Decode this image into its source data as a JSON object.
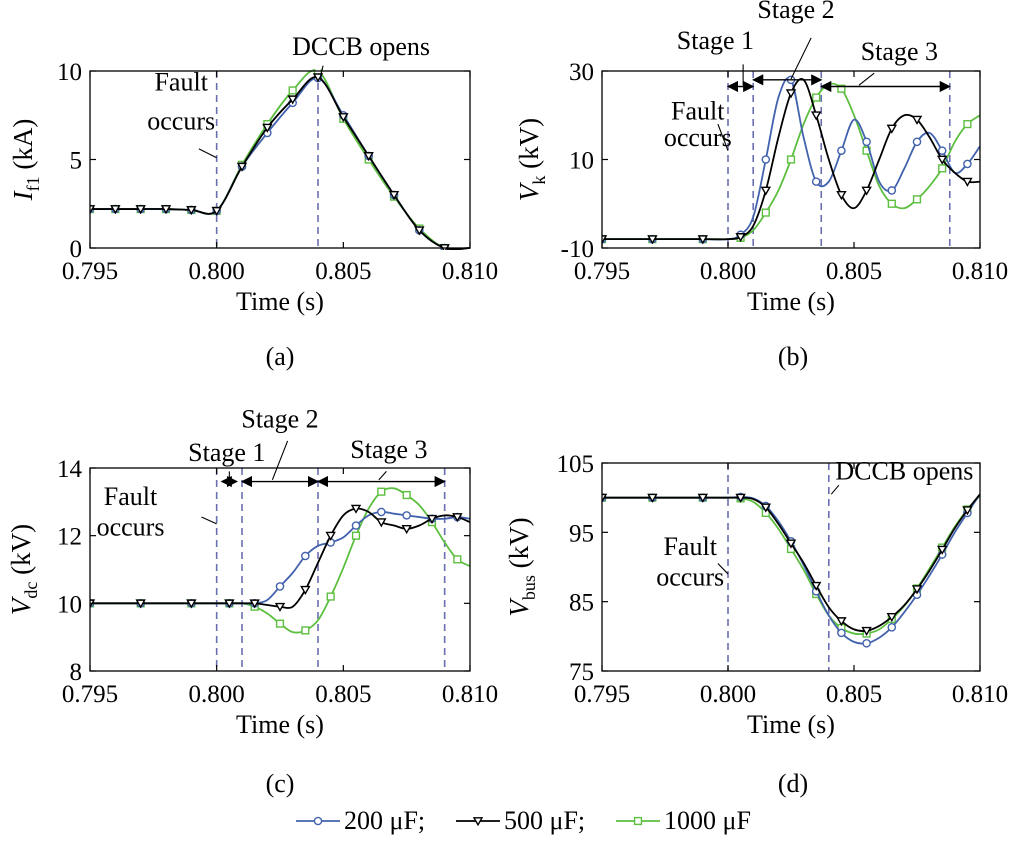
{
  "colors": {
    "200": "#4262ae",
    "500": "#000000",
    "1000": "#5cbf3f",
    "vline": "#6a6fb0"
  },
  "legend": [
    {
      "name": "200 μF;",
      "color": "#4262ae",
      "marker": "circle"
    },
    {
      "name": "500 μF;",
      "color": "#000000",
      "marker": "triangle-down"
    },
    {
      "name": "1000 μF",
      "color": "#5cbf3f",
      "marker": "square"
    }
  ],
  "chart_data": [
    {
      "id": "a",
      "type": "line",
      "caption": "(a)",
      "ylabel_main": "I",
      "ylabel_sub": "f1",
      "ylabel_unit": " (kA)",
      "xlabel": "Time (s)",
      "xlim": [
        0.795,
        0.81
      ],
      "ylim": [
        0,
        10
      ],
      "xticks": [
        "0.795",
        "0.800",
        "0.805",
        "0.810"
      ],
      "xtick_vals": [
        0.795,
        0.8,
        0.805,
        0.81
      ],
      "yticks": [
        "0",
        "5",
        "10"
      ],
      "ytick_vals": [
        0,
        5,
        10
      ],
      "vlines": [
        0.8,
        0.804
      ],
      "annotations": [
        {
          "text": "Fault",
          "x": 0.7986,
          "y": 8.9
        },
        {
          "text": "occurs",
          "x": 0.7986,
          "y": 6.7
        },
        {
          "text": "DCCB opens",
          "x": 0.8057,
          "y": 10.9
        }
      ],
      "series": [
        {
          "name": "200 μF",
          "key": "200",
          "x": [
            0.795,
            0.796,
            0.797,
            0.798,
            0.799,
            0.8,
            0.801,
            0.802,
            0.803,
            0.804,
            0.805,
            0.806,
            0.807,
            0.808,
            0.809,
            0.81
          ],
          "y": [
            2.2,
            2.2,
            2.2,
            2.2,
            2.15,
            2.1,
            4.6,
            6.5,
            8.2,
            9.6,
            7.5,
            5.2,
            3.0,
            1.0,
            0.0,
            0.0
          ]
        },
        {
          "name": "500 μF",
          "key": "500",
          "x": [
            0.795,
            0.796,
            0.797,
            0.798,
            0.799,
            0.8,
            0.801,
            0.802,
            0.803,
            0.804,
            0.805,
            0.806,
            0.807,
            0.808,
            0.809,
            0.81
          ],
          "y": [
            2.2,
            2.2,
            2.2,
            2.2,
            2.15,
            2.1,
            4.6,
            6.8,
            8.4,
            9.65,
            7.4,
            5.2,
            3.0,
            1.0,
            0.0,
            0.0
          ]
        },
        {
          "name": "1000 μF",
          "key": "1000",
          "x": [
            0.795,
            0.796,
            0.797,
            0.798,
            0.799,
            0.8,
            0.801,
            0.802,
            0.803,
            0.804,
            0.805,
            0.806,
            0.807,
            0.808,
            0.809,
            0.81
          ],
          "y": [
            2.2,
            2.2,
            2.2,
            2.2,
            2.15,
            2.1,
            4.7,
            7.0,
            8.9,
            10.0,
            7.3,
            5.0,
            2.9,
            1.1,
            0.0,
            0.0
          ]
        }
      ]
    },
    {
      "id": "b",
      "type": "line",
      "caption": "(b)",
      "ylabel_main": "V",
      "ylabel_sub": "k",
      "ylabel_unit": " (kV)",
      "xlabel": "Time (s)",
      "xlim": [
        0.795,
        0.81
      ],
      "ylim": [
        -10,
        30
      ],
      "xticks": [
        "0.795",
        "0.800",
        "0.805",
        "0.810"
      ],
      "xtick_vals": [
        0.795,
        0.8,
        0.805,
        0.81
      ],
      "yticks": [
        "-10",
        "10",
        "30"
      ],
      "ytick_vals": [
        -10,
        10,
        30
      ],
      "vlines": [
        0.8,
        0.801,
        0.8037,
        0.8088
      ],
      "annotations": [
        {
          "text": "Fault",
          "x": 0.7988,
          "y": 19.0
        },
        {
          "text": "occurs",
          "x": 0.7988,
          "y": 13.0
        },
        {
          "text": "Stage 1",
          "x": 0.7995,
          "y": 35.0
        },
        {
          "text": "Stage 2",
          "x": 0.8027,
          "y": 42.0
        },
        {
          "text": "Stage 3",
          "x": 0.8068,
          "y": 32.5
        }
      ],
      "stages": [
        {
          "x1": 0.8,
          "x2": 0.801,
          "y": 26.5
        },
        {
          "x1": 0.801,
          "x2": 0.8037,
          "y": 28.0
        },
        {
          "x1": 0.8037,
          "x2": 0.8088,
          "y": 26.5
        }
      ],
      "series": [
        {
          "name": "200 μF",
          "key": "200",
          "x": [
            0.795,
            0.796,
            0.797,
            0.798,
            0.799,
            0.8,
            0.8005,
            0.801,
            0.8015,
            0.802,
            0.8025,
            0.803,
            0.8035,
            0.804,
            0.8045,
            0.805,
            0.8055,
            0.806,
            0.8065,
            0.807,
            0.8075,
            0.808,
            0.8085,
            0.809,
            0.8095,
            0.81
          ],
          "y": [
            -8,
            -8,
            -8,
            -8,
            -8,
            -8,
            -7,
            -3,
            10,
            24,
            28,
            15,
            5,
            5,
            12,
            19,
            14,
            5,
            3,
            8,
            14,
            16,
            12,
            7,
            9,
            13
          ]
        },
        {
          "name": "500 μF",
          "key": "500",
          "x": [
            0.795,
            0.796,
            0.797,
            0.798,
            0.799,
            0.8,
            0.8005,
            0.801,
            0.8015,
            0.802,
            0.8025,
            0.803,
            0.8035,
            0.804,
            0.8045,
            0.805,
            0.8055,
            0.806,
            0.8065,
            0.807,
            0.8075,
            0.808,
            0.8085,
            0.809,
            0.8095,
            0.81
          ],
          "y": [
            -8,
            -8,
            -8,
            -8,
            -8,
            -8,
            -7.5,
            -5,
            3,
            15,
            25,
            28,
            20,
            10,
            2,
            -1,
            3,
            10,
            17,
            20,
            19,
            15,
            10,
            7,
            5,
            5
          ]
        },
        {
          "name": "1000 μF",
          "key": "1000",
          "x": [
            0.795,
            0.796,
            0.797,
            0.798,
            0.799,
            0.8,
            0.8005,
            0.801,
            0.8015,
            0.802,
            0.8025,
            0.803,
            0.8035,
            0.804,
            0.8045,
            0.805,
            0.8055,
            0.806,
            0.8065,
            0.807,
            0.8075,
            0.808,
            0.8085,
            0.809,
            0.8095,
            0.81
          ],
          "y": [
            -8,
            -8,
            -8,
            -8,
            -8,
            -8,
            -7.7,
            -6,
            -2,
            3,
            10,
            18,
            24,
            27,
            26,
            20,
            12,
            4,
            0,
            -1,
            1,
            4,
            8,
            14,
            18,
            20
          ]
        }
      ]
    },
    {
      "id": "c",
      "type": "line",
      "caption": "(c)",
      "ylabel_main": "V",
      "ylabel_sub": "dc",
      "ylabel_unit": " (kV)",
      "xlabel": "Time (s)",
      "xlim": [
        0.795,
        0.81
      ],
      "ylim": [
        8,
        14
      ],
      "xticks": [
        "0.795",
        "0.800",
        "0.805",
        "0.810"
      ],
      "xtick_vals": [
        0.795,
        0.8,
        0.805,
        0.81
      ],
      "yticks": [
        "8",
        "10",
        "12",
        "14"
      ],
      "ytick_vals": [
        8,
        10,
        12,
        14
      ],
      "vlines": [
        0.8,
        0.801,
        0.804,
        0.809
      ],
      "annotations": [
        {
          "text": "Fault",
          "x": 0.7966,
          "y": 12.9
        },
        {
          "text": "occurs",
          "x": 0.7966,
          "y": 12.0
        },
        {
          "text": "Stage 1",
          "x": 0.8004,
          "y": 14.2
        },
        {
          "text": "Stage 2",
          "x": 0.8025,
          "y": 15.2
        },
        {
          "text": "Stage 3",
          "x": 0.8068,
          "y": 14.3
        }
      ],
      "stages": [
        {
          "x1": 0.8002,
          "x2": 0.8008,
          "y": 13.6
        },
        {
          "x1": 0.801,
          "x2": 0.804,
          "y": 13.6
        },
        {
          "x1": 0.804,
          "x2": 0.809,
          "y": 13.6
        }
      ],
      "series": [
        {
          "name": "200 μF",
          "key": "200",
          "x": [
            0.795,
            0.796,
            0.797,
            0.798,
            0.799,
            0.8,
            0.8005,
            0.801,
            0.8015,
            0.802,
            0.8025,
            0.803,
            0.8035,
            0.804,
            0.8045,
            0.805,
            0.8055,
            0.806,
            0.8065,
            0.807,
            0.8075,
            0.808,
            0.8085,
            0.809,
            0.8095,
            0.81
          ],
          "y": [
            10,
            10,
            10,
            10,
            10,
            10,
            10,
            10,
            10,
            10.1,
            10.5,
            10.9,
            11.4,
            11.7,
            11.8,
            11.95,
            12.3,
            12.6,
            12.7,
            12.65,
            12.6,
            12.55,
            12.5,
            12.5,
            12.55,
            12.5
          ]
        },
        {
          "name": "500 μF",
          "key": "500",
          "x": [
            0.795,
            0.796,
            0.797,
            0.798,
            0.799,
            0.8,
            0.8005,
            0.801,
            0.8015,
            0.802,
            0.8025,
            0.803,
            0.8035,
            0.804,
            0.8045,
            0.805,
            0.8055,
            0.806,
            0.8065,
            0.807,
            0.8075,
            0.808,
            0.8085,
            0.809,
            0.8095,
            0.81
          ],
          "y": [
            10,
            10,
            10,
            10,
            10,
            10,
            10,
            10,
            10,
            9.95,
            9.9,
            9.9,
            10.4,
            11.2,
            12.0,
            12.6,
            12.8,
            12.7,
            12.4,
            12.3,
            12.2,
            12.3,
            12.5,
            12.6,
            12.55,
            12.4
          ]
        },
        {
          "name": "1000 μF",
          "key": "1000",
          "x": [
            0.795,
            0.796,
            0.797,
            0.798,
            0.799,
            0.8,
            0.8005,
            0.801,
            0.8015,
            0.802,
            0.8025,
            0.803,
            0.8035,
            0.804,
            0.8045,
            0.805,
            0.8055,
            0.806,
            0.8065,
            0.807,
            0.8075,
            0.808,
            0.8085,
            0.809,
            0.8095,
            0.81
          ],
          "y": [
            10,
            10,
            10,
            10,
            10,
            10,
            10,
            10,
            9.9,
            9.7,
            9.4,
            9.15,
            9.2,
            9.5,
            10.2,
            11.05,
            12.0,
            12.8,
            13.3,
            13.4,
            13.2,
            12.9,
            12.4,
            11.8,
            11.3,
            11.1
          ]
        }
      ]
    },
    {
      "id": "d",
      "type": "line",
      "caption": "(d)",
      "ylabel_main": "V",
      "ylabel_sub": "bus",
      "ylabel_unit": " (kV)",
      "xlabel": "Time (s)",
      "xlim": [
        0.795,
        0.81
      ],
      "ylim": [
        75,
        105
      ],
      "xticks": [
        "0.795",
        "0.800",
        "0.805",
        "0.810"
      ],
      "xtick_vals": [
        0.795,
        0.8,
        0.805,
        0.81
      ],
      "yticks": [
        "75",
        "85",
        "95",
        "105"
      ],
      "ytick_vals": [
        75,
        85,
        95,
        105
      ],
      "vlines": [
        0.8,
        0.804
      ],
      "annotations": [
        {
          "text": "Fault",
          "x": 0.7985,
          "y": 91.7
        },
        {
          "text": "occurs",
          "x": 0.7985,
          "y": 87.3
        },
        {
          "text": "DCCB opens",
          "x": 0.807,
          "y": 102.6
        }
      ],
      "series": [
        {
          "name": "200 μF",
          "key": "200",
          "x": [
            0.795,
            0.796,
            0.797,
            0.798,
            0.799,
            0.8,
            0.8005,
            0.801,
            0.8015,
            0.802,
            0.8025,
            0.803,
            0.8035,
            0.804,
            0.8045,
            0.805,
            0.8055,
            0.806,
            0.8065,
            0.807,
            0.8075,
            0.808,
            0.8085,
            0.809,
            0.8095,
            0.81
          ],
          "y": [
            100,
            100,
            100,
            100,
            100,
            100,
            100.1,
            99.9,
            98.8,
            96.6,
            93.7,
            90.3,
            86.5,
            83.0,
            80.5,
            79.2,
            79.0,
            79.8,
            81.3,
            83.5,
            86.0,
            88.8,
            91.8,
            95.0,
            97.8,
            100.5
          ]
        },
        {
          "name": "500 μF",
          "key": "500",
          "x": [
            0.795,
            0.796,
            0.797,
            0.798,
            0.799,
            0.8,
            0.8005,
            0.801,
            0.8015,
            0.802,
            0.8025,
            0.803,
            0.8035,
            0.804,
            0.8045,
            0.805,
            0.8055,
            0.806,
            0.8065,
            0.807,
            0.8075,
            0.808,
            0.8085,
            0.809,
            0.8095,
            0.81
          ],
          "y": [
            100,
            100,
            100,
            100,
            100,
            100,
            100,
            99.8,
            98.6,
            96.2,
            93.4,
            90.6,
            87.3,
            84.2,
            82.2,
            81.0,
            80.8,
            81.5,
            82.8,
            84.5,
            86.8,
            89.5,
            92.5,
            95.6,
            98.2,
            100.5
          ]
        },
        {
          "name": "1000 μF",
          "key": "1000",
          "x": [
            0.795,
            0.796,
            0.797,
            0.798,
            0.799,
            0.8,
            0.8005,
            0.801,
            0.8015,
            0.802,
            0.8025,
            0.803,
            0.8035,
            0.804,
            0.8045,
            0.805,
            0.8055,
            0.806,
            0.8065,
            0.807,
            0.8075,
            0.808,
            0.8085,
            0.809,
            0.8095,
            0.81
          ],
          "y": [
            100,
            100,
            100,
            100,
            100,
            100,
            99.9,
            99.4,
            97.8,
            95.5,
            92.6,
            89.6,
            86.1,
            83.0,
            81.2,
            80.4,
            80.4,
            81.0,
            82.5,
            84.4,
            86.9,
            89.8,
            92.8,
            95.8,
            98.3,
            100.3
          ]
        }
      ]
    }
  ]
}
